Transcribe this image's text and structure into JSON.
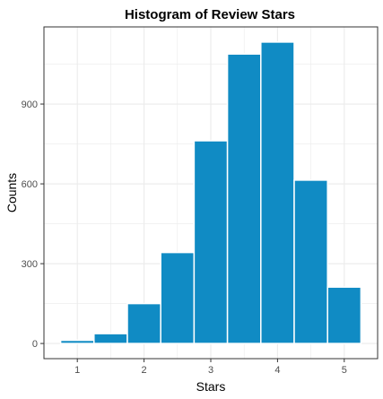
{
  "chart_data": {
    "type": "bar",
    "title": "Histogram of Review Stars",
    "xlabel": "Stars",
    "ylabel": "Counts",
    "bar_color": "#108bc4",
    "bar_edge_color": "#ffffff",
    "panel_border_color": "#333333",
    "grid_color": "#ebebeb",
    "grid": true,
    "bins": [
      {
        "x_start": 0.75,
        "x_end": 1.25,
        "count": 12
      },
      {
        "x_start": 1.25,
        "x_end": 1.75,
        "count": 37
      },
      {
        "x_start": 1.75,
        "x_end": 2.25,
        "count": 150
      },
      {
        "x_start": 2.25,
        "x_end": 2.75,
        "count": 342
      },
      {
        "x_start": 2.75,
        "x_end": 3.25,
        "count": 762
      },
      {
        "x_start": 3.25,
        "x_end": 3.75,
        "count": 1088
      },
      {
        "x_start": 3.75,
        "x_end": 4.25,
        "count": 1133
      },
      {
        "x_start": 4.25,
        "x_end": 4.75,
        "count": 614
      },
      {
        "x_start": 4.75,
        "x_end": 5.25,
        "count": 212
      }
    ],
    "xlim": [
      0.5,
      5.5
    ],
    "ylim": [
      -57,
      1190
    ],
    "x_ticks": [
      1,
      2,
      3,
      4,
      5
    ],
    "y_ticks": [
      0,
      300,
      600,
      900
    ]
  }
}
